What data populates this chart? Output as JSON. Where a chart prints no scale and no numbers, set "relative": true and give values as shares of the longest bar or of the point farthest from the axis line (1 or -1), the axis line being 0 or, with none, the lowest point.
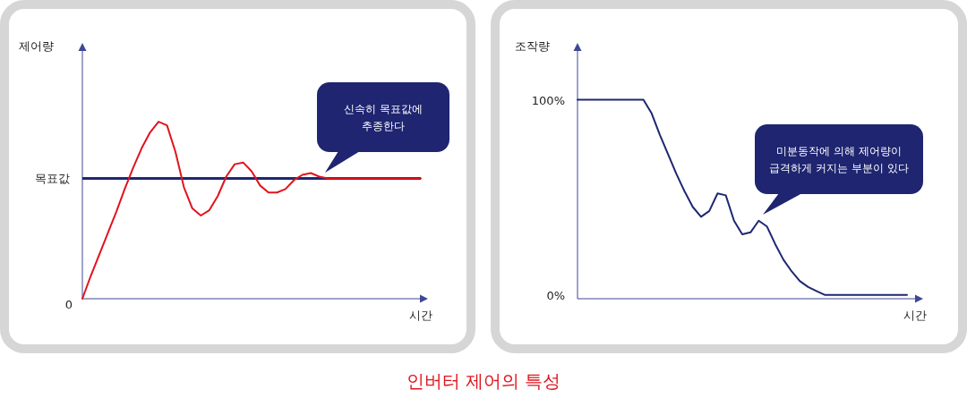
{
  "chart_data": [
    {
      "type": "line",
      "relative": true,
      "xlabel": "시간",
      "ylabel": "제어량",
      "tick_labels": false,
      "categories": [
        null,
        null,
        null,
        null,
        null,
        null,
        null,
        null,
        null,
        null,
        null,
        null,
        null,
        null,
        null,
        null,
        null,
        null,
        null,
        null,
        null,
        null,
        null,
        null,
        null,
        null,
        null,
        null,
        null,
        null,
        null,
        null,
        null,
        null,
        null,
        null,
        null,
        null,
        null,
        null,
        null
      ],
      "series": [
        {
          "color": "#e0141e",
          "values": [
            0,
            0.13,
            0.25,
            0.37,
            0.49,
            0.62,
            0.74,
            0.85,
            0.94,
            1.0,
            0.98,
            0.83,
            0.63,
            0.51,
            0.47,
            0.5,
            0.58,
            0.69,
            0.76,
            0.77,
            0.72,
            0.64,
            0.6,
            0.6,
            0.62,
            0.67,
            0.7,
            0.71,
            0.69,
            0.68,
            0.68,
            0.68,
            0.68,
            0.68,
            0.68,
            0.68,
            0.68,
            0.68,
            0.68,
            0.68,
            0.68
          ]
        }
      ],
      "ref_lines": [
        {
          "axis": "y",
          "value": 0.68,
          "label": "목표값",
          "color": "#1e2772"
        }
      ],
      "annotations": [
        "0",
        "신속히 목표값에 추종한다"
      ]
    },
    {
      "type": "line",
      "xlabel": "시간",
      "ylabel": "조작량",
      "tick_labels": "y",
      "categories": [
        null,
        null,
        null,
        null,
        null,
        null,
        null,
        null,
        null,
        null,
        null,
        null,
        null,
        null,
        null,
        null,
        null,
        null,
        null,
        null,
        null,
        null,
        null,
        null,
        null,
        null,
        null,
        null,
        null,
        null,
        null,
        null,
        null,
        null,
        null,
        null,
        null,
        null,
        null,
        null,
        null
      ],
      "ylim": [
        -2,
        125
      ],
      "yticks": [
        {
          "value": 0,
          "label": "0%"
        },
        {
          "value": 100,
          "label": "100%"
        }
      ],
      "series": [
        {
          "color": "#1e2772",
          "values": [
            100,
            100,
            100,
            100,
            100,
            100,
            100,
            100,
            100,
            93,
            82,
            72,
            62,
            53,
            45,
            40,
            43,
            52,
            51,
            38,
            31,
            32,
            38,
            35,
            26,
            18,
            12,
            7,
            4,
            2,
            0,
            0,
            0,
            0,
            0,
            0,
            0,
            0,
            0,
            0,
            0
          ]
        }
      ],
      "annotations": [
        "미분동작에 의해 제어량이 급격하게 커지는 부분이 있다",
        "인버터 제어의 특성"
      ]
    }
  ]
}
